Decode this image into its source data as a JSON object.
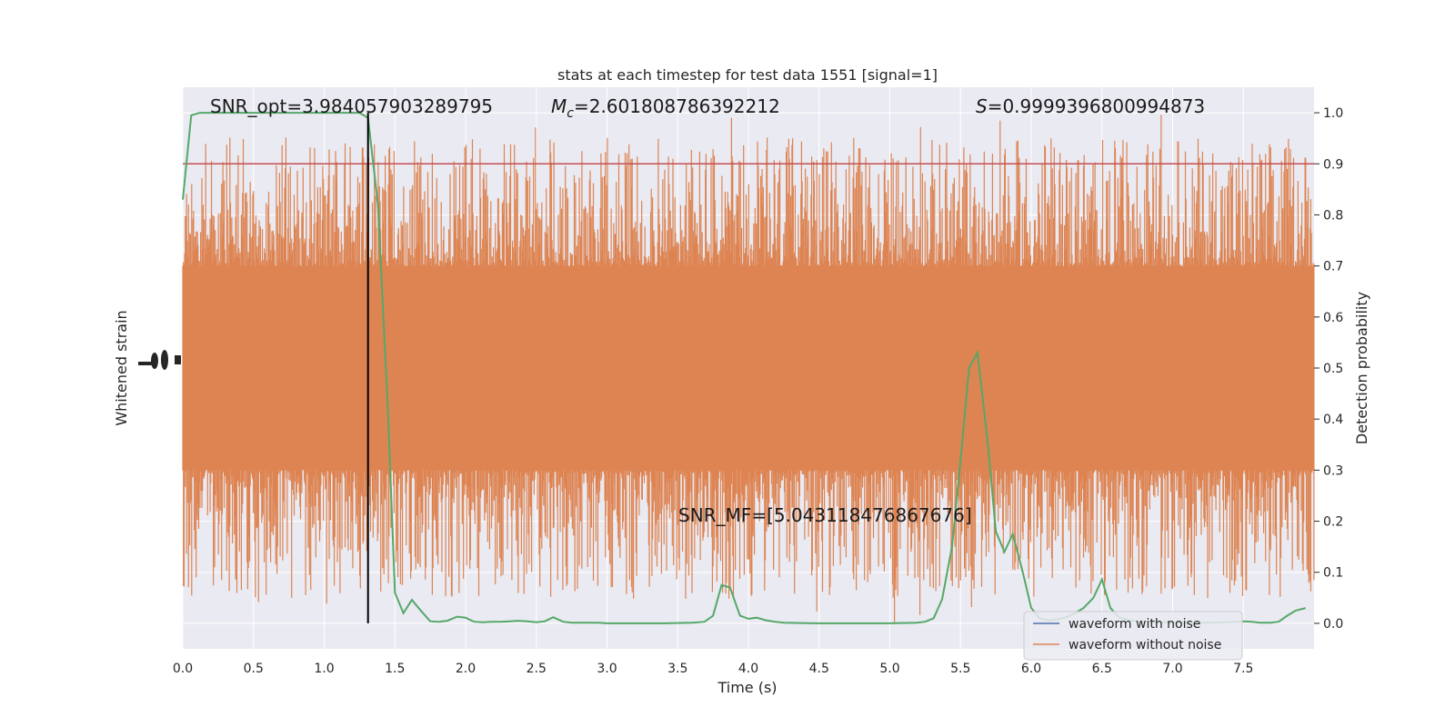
{
  "chart_data": {
    "type": "line",
    "title": "stats at each timestep for test data 1551 [signal=1]",
    "xlabel": "Time (s)",
    "ylabel_left": "Whitened strain",
    "ylabel_right": "Detection probability",
    "xlim": [
      0,
      8
    ],
    "ylim_right": [
      -0.05,
      1.05
    ],
    "x_ticks": [
      "0.0",
      "0.5",
      "1.0",
      "1.5",
      "2.0",
      "2.5",
      "3.0",
      "3.5",
      "4.0",
      "4.5",
      "5.0",
      "5.5",
      "6.0",
      "6.5",
      "7.0",
      "7.5"
    ],
    "x_tick_values": [
      0,
      0.5,
      1,
      1.5,
      2,
      2.5,
      3,
      3.5,
      4,
      4.5,
      5,
      5.5,
      6,
      6.5,
      7,
      7.5
    ],
    "y_ticks_right": [
      "0.0",
      "0.1",
      "0.2",
      "0.3",
      "0.4",
      "0.5",
      "0.6",
      "0.7",
      "0.8",
      "0.9",
      "1.0"
    ],
    "y_tick_values_right": [
      0,
      0.1,
      0.2,
      0.3,
      0.4,
      0.5,
      0.6,
      0.7,
      0.8,
      0.9,
      1.0
    ],
    "grid": true,
    "legend_position": "bottom-right",
    "annotations": {
      "snr_opt": "SNR_opt=3.984057903289795",
      "mc_symbol": "M",
      "mc_subscript": "c",
      "mc_value": "=2.601808786392212",
      "s_symbol": "S",
      "s_value": "=0.9999396800994873",
      "snr_mf": "SNR_MF=[5.043118476867676]"
    },
    "threshold": 0.9,
    "marker_time": 1.31,
    "series": [
      {
        "name": "waveform with noise",
        "color": "#4c72b0"
      },
      {
        "name": "waveform without noise",
        "color": "#dd8452"
      }
    ],
    "noise_band": {
      "center": 0.5,
      "dense_lower": 0.3,
      "dense_upper": 0.7,
      "min": 0.0,
      "max": 1.0
    },
    "probability": {
      "color": "#55a868",
      "x": [
        0.0,
        0.06,
        0.12,
        0.2,
        0.3,
        0.5,
        0.7,
        0.9,
        1.1,
        1.25,
        1.31,
        1.38,
        1.45,
        1.5,
        1.56,
        1.62,
        1.68,
        1.75,
        1.81,
        1.87,
        1.94,
        2.0,
        2.06,
        2.12,
        2.19,
        2.25,
        2.31,
        2.37,
        2.44,
        2.5,
        2.56,
        2.62,
        2.69,
        2.75,
        2.81,
        2.87,
        2.94,
        3.0,
        3.2,
        3.4,
        3.6,
        3.69,
        3.75,
        3.81,
        3.87,
        3.94,
        4.0,
        4.06,
        4.12,
        4.19,
        4.25,
        4.5,
        4.75,
        5.0,
        5.19,
        5.25,
        5.31,
        5.37,
        5.44,
        5.5,
        5.56,
        5.62,
        5.69,
        5.75,
        5.81,
        5.87,
        5.94,
        6.0,
        6.06,
        6.12,
        6.19,
        6.25,
        6.31,
        6.37,
        6.44,
        6.5,
        6.56,
        6.62,
        6.69,
        6.75,
        6.81,
        6.87,
        6.94,
        7.0,
        7.25,
        7.44,
        7.5,
        7.56,
        7.62,
        7.69,
        7.75,
        7.81,
        7.87,
        7.94
      ],
      "y": [
        0.83,
        0.995,
        1.0,
        1.0,
        1.0,
        1.0,
        1.0,
        1.0,
        1.0,
        1.0,
        0.99,
        0.82,
        0.42,
        0.06,
        0.02,
        0.046,
        0.026,
        0.004,
        0.003,
        0.005,
        0.013,
        0.011,
        0.003,
        0.002,
        0.003,
        0.003,
        0.004,
        0.005,
        0.004,
        0.002,
        0.004,
        0.012,
        0.003,
        0.001,
        0.001,
        0.001,
        0.001,
        0.0,
        0.0,
        0.0,
        0.001,
        0.003,
        0.015,
        0.075,
        0.07,
        0.015,
        0.009,
        0.011,
        0.006,
        0.003,
        0.001,
        0.0,
        0.0,
        0.0,
        0.001,
        0.003,
        0.01,
        0.047,
        0.15,
        0.32,
        0.5,
        0.53,
        0.36,
        0.18,
        0.14,
        0.175,
        0.1,
        0.03,
        0.01,
        0.005,
        0.008,
        0.012,
        0.02,
        0.03,
        0.05,
        0.086,
        0.03,
        0.012,
        0.006,
        0.004,
        0.004,
        0.002,
        0.002,
        0.001,
        0.001,
        0.003,
        0.004,
        0.003,
        0.001,
        0.001,
        0.003,
        0.015,
        0.025,
        0.03
      ]
    }
  }
}
